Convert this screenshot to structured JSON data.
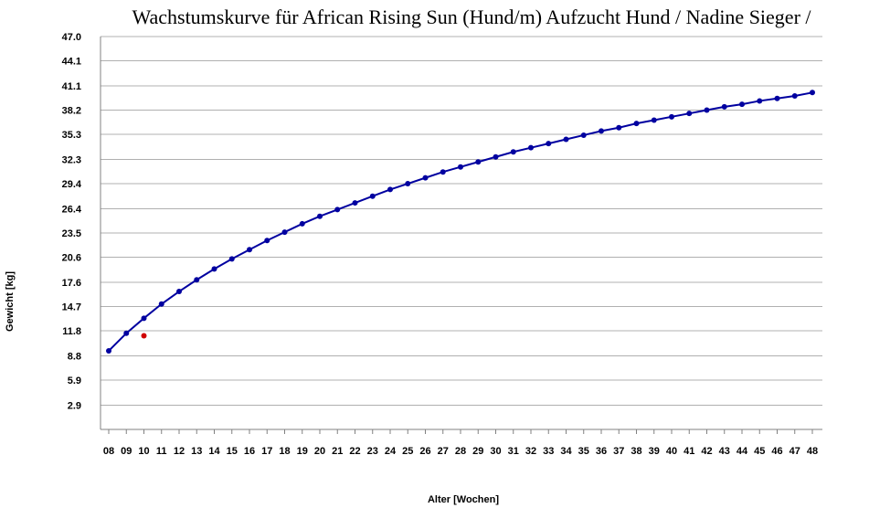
{
  "chart_data": {
    "type": "line",
    "title": "Wachstumskurve für African Rising Sun (Hund/m) Aufzucht Hund  / Nadine Sieger  /",
    "xlabel": "Alter [Wochen]",
    "ylabel": "Gewicht [kg]",
    "ylim": [
      0,
      47.0
    ],
    "yticks": [
      "2.9",
      "5.9",
      "8.8",
      "11.8",
      "14.7",
      "17.6",
      "20.6",
      "23.5",
      "26.4",
      "29.4",
      "32.3",
      "35.3",
      "38.2",
      "41.1",
      "44.1",
      "47.0"
    ],
    "categories": [
      "08",
      "09",
      "10",
      "11",
      "12",
      "13",
      "14",
      "15",
      "16",
      "17",
      "18",
      "19",
      "20",
      "21",
      "22",
      "23",
      "24",
      "25",
      "26",
      "27",
      "28",
      "29",
      "30",
      "31",
      "32",
      "33",
      "34",
      "35",
      "36",
      "37",
      "38",
      "39",
      "40",
      "41",
      "42",
      "43",
      "44",
      "45",
      "46",
      "47",
      "48"
    ],
    "series": [
      {
        "color": "#0000a0",
        "values": [
          9.4,
          11.5,
          13.3,
          15.0,
          16.5,
          17.9,
          19.2,
          20.4,
          21.5,
          22.6,
          23.6,
          24.6,
          25.5,
          26.3,
          27.1,
          27.9,
          28.7,
          29.4,
          30.1,
          30.8,
          31.4,
          32.0,
          32.6,
          33.2,
          33.7,
          34.2,
          34.7,
          35.2,
          35.7,
          36.1,
          36.6,
          37.0,
          37.4,
          37.8,
          38.2,
          38.6,
          38.9,
          39.3,
          39.6,
          39.9,
          40.3
        ]
      },
      {
        "color": "#d00000",
        "type": "scatter",
        "points": [
          {
            "x": "10",
            "y": 11.2
          }
        ]
      }
    ],
    "grid": true
  }
}
